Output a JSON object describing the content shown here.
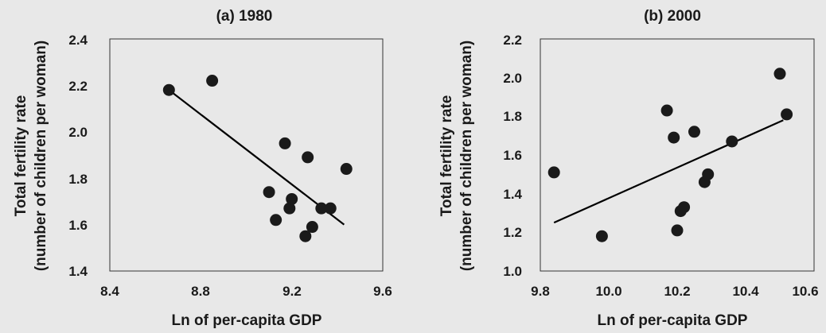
{
  "chart_data": [
    {
      "type": "scatter",
      "title": "(a) 1980",
      "xlabel": "Ln of per-capita GDP",
      "ylabel_lines": [
        "Total fertility rate",
        "(number of children per woman)"
      ],
      "xlim": [
        8.4,
        9.6
      ],
      "ylim": [
        1.4,
        2.4
      ],
      "xticks": [
        "8.4",
        "8.8",
        "9.2",
        "9.6"
      ],
      "xtick_values": [
        8.4,
        8.8,
        9.2,
        9.6
      ],
      "yticks": [
        "1.4",
        "1.6",
        "1.8",
        "2.0",
        "2.2",
        "2.4"
      ],
      "ytick_values": [
        1.4,
        1.6,
        1.8,
        2.0,
        2.2,
        2.4
      ],
      "points": [
        {
          "x": 8.66,
          "y": 2.18
        },
        {
          "x": 8.85,
          "y": 2.22
        },
        {
          "x": 9.1,
          "y": 1.74
        },
        {
          "x": 9.13,
          "y": 1.62
        },
        {
          "x": 9.17,
          "y": 1.95
        },
        {
          "x": 9.19,
          "y": 1.67
        },
        {
          "x": 9.2,
          "y": 1.71
        },
        {
          "x": 9.26,
          "y": 1.55
        },
        {
          "x": 9.27,
          "y": 1.89
        },
        {
          "x": 9.29,
          "y": 1.59
        },
        {
          "x": 9.33,
          "y": 1.67
        },
        {
          "x": 9.37,
          "y": 1.67
        },
        {
          "x": 9.44,
          "y": 1.84
        }
      ],
      "trend_line": {
        "x": [
          8.66,
          9.43
        ],
        "y": [
          2.18,
          1.6
        ]
      },
      "grid": false,
      "legend": "none"
    },
    {
      "type": "scatter",
      "title": "(b) 2000",
      "xlabel": "Ln of per-capita GDP",
      "ylabel_lines": [
        "Total fertility rate",
        "(number of children per woman)"
      ],
      "xlim": [
        9.8,
        10.6
      ],
      "ylim": [
        1.0,
        2.2
      ],
      "xticks": [
        "9.8",
        "10.0",
        "10.2",
        "10.4",
        "10.6"
      ],
      "xtick_values": [
        9.8,
        10.0,
        10.2,
        10.4,
        10.6
      ],
      "yticks": [
        "1.0",
        "1.2",
        "1.4",
        "1.6",
        "1.8",
        "2.0",
        "2.2"
      ],
      "ytick_values": [
        1.0,
        1.2,
        1.4,
        1.6,
        1.8,
        2.0,
        2.2
      ],
      "points": [
        {
          "x": 9.84,
          "y": 1.51
        },
        {
          "x": 9.98,
          "y": 1.18
        },
        {
          "x": 10.17,
          "y": 1.83
        },
        {
          "x": 10.19,
          "y": 1.69
        },
        {
          "x": 10.2,
          "y": 1.21
        },
        {
          "x": 10.21,
          "y": 1.31
        },
        {
          "x": 10.22,
          "y": 1.33
        },
        {
          "x": 10.25,
          "y": 1.72
        },
        {
          "x": 10.28,
          "y": 1.46
        },
        {
          "x": 10.29,
          "y": 1.5
        },
        {
          "x": 10.36,
          "y": 1.67
        },
        {
          "x": 10.5,
          "y": 2.02
        },
        {
          "x": 10.52,
          "y": 1.81
        }
      ],
      "trend_line": {
        "x": [
          9.84,
          10.51
        ],
        "y": [
          1.25,
          1.78
        ]
      },
      "grid": false,
      "legend": "none"
    }
  ]
}
